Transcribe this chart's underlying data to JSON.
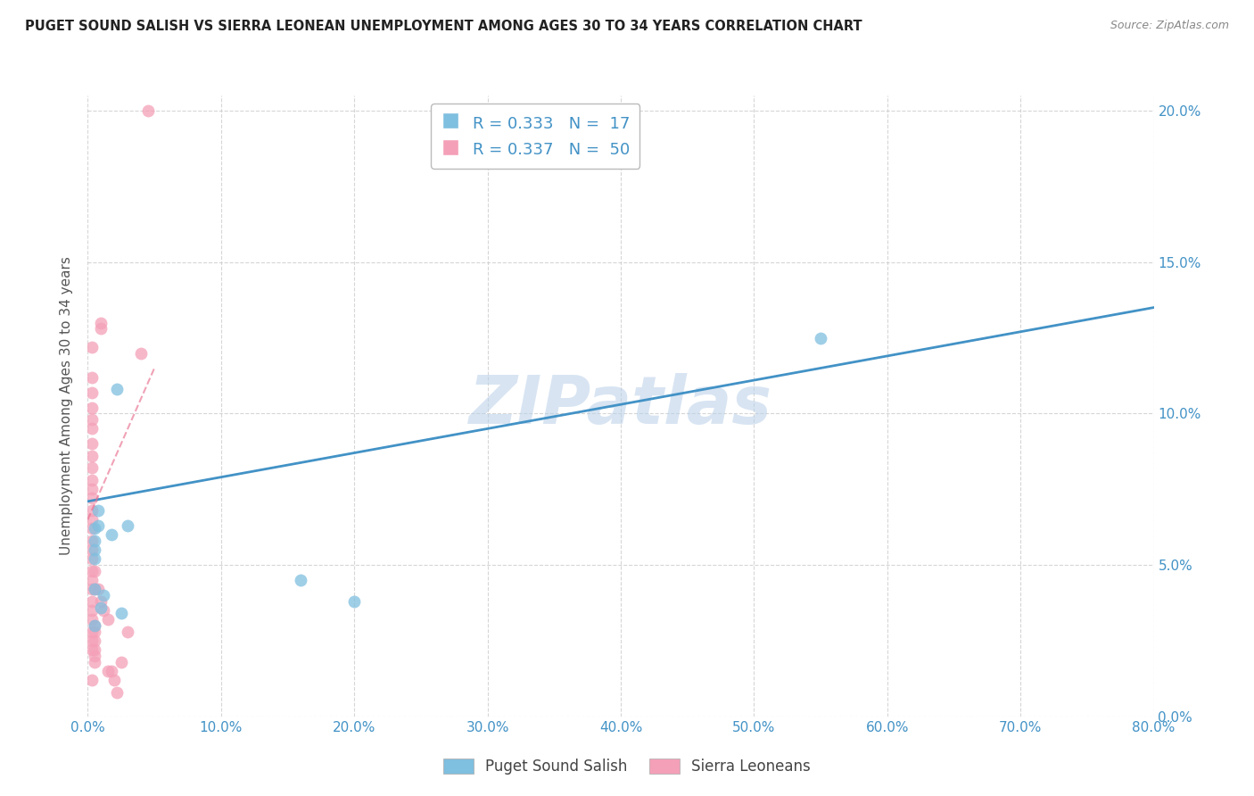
{
  "title": "PUGET SOUND SALISH VS SIERRA LEONEAN UNEMPLOYMENT AMONG AGES 30 TO 34 YEARS CORRELATION CHART",
  "source": "Source: ZipAtlas.com",
  "ylabel": "Unemployment Among Ages 30 to 34 years",
  "xlim": [
    0,
    0.8
  ],
  "ylim": [
    0,
    0.205
  ],
  "xticks": [
    0.0,
    0.1,
    0.2,
    0.3,
    0.4,
    0.5,
    0.6,
    0.7,
    0.8
  ],
  "yticks": [
    0.0,
    0.05,
    0.1,
    0.15,
    0.2
  ],
  "background_color": "#ffffff",
  "grid_color": "#cccccc",
  "watermark": "ZIPatlas",
  "blue_color": "#7fbfdf",
  "pink_color": "#f4a0b8",
  "blue_line_color": "#4292c6",
  "pink_line_color": "#e87090",
  "legend_R1": "R = 0.333",
  "legend_N1": "N =  17",
  "legend_R2": "R = 0.337",
  "legend_N2": "N =  50",
  "label1": "Puget Sound Salish",
  "label2": "Sierra Leoneans",
  "blue_scatter_x": [
    0.005,
    0.005,
    0.005,
    0.005,
    0.005,
    0.005,
    0.008,
    0.008,
    0.01,
    0.012,
    0.018,
    0.022,
    0.025,
    0.16,
    0.2,
    0.03,
    0.55
  ],
  "blue_scatter_y": [
    0.062,
    0.058,
    0.055,
    0.052,
    0.042,
    0.03,
    0.068,
    0.063,
    0.036,
    0.04,
    0.06,
    0.108,
    0.034,
    0.045,
    0.038,
    0.063,
    0.125
  ],
  "pink_scatter_x": [
    0.003,
    0.003,
    0.003,
    0.003,
    0.003,
    0.003,
    0.003,
    0.003,
    0.003,
    0.003,
    0.003,
    0.003,
    0.003,
    0.003,
    0.003,
    0.003,
    0.003,
    0.003,
    0.003,
    0.003,
    0.003,
    0.003,
    0.003,
    0.003,
    0.003,
    0.003,
    0.003,
    0.003,
    0.005,
    0.005,
    0.005,
    0.005,
    0.005,
    0.005,
    0.005,
    0.005,
    0.008,
    0.01,
    0.01,
    0.01,
    0.012,
    0.015,
    0.015,
    0.018,
    0.02,
    0.022,
    0.025,
    0.03,
    0.04,
    0.045
  ],
  "pink_scatter_y": [
    0.122,
    0.112,
    0.107,
    0.102,
    0.098,
    0.095,
    0.09,
    0.086,
    0.082,
    0.078,
    0.075,
    0.072,
    0.068,
    0.065,
    0.062,
    0.058,
    0.055,
    0.052,
    0.048,
    0.045,
    0.042,
    0.038,
    0.035,
    0.032,
    0.028,
    0.025,
    0.022,
    0.012,
    0.048,
    0.042,
    0.03,
    0.028,
    0.025,
    0.022,
    0.02,
    0.018,
    0.042,
    0.13,
    0.128,
    0.038,
    0.035,
    0.032,
    0.015,
    0.015,
    0.012,
    0.008,
    0.018,
    0.028,
    0.12,
    0.2
  ],
  "blue_line_x": [
    0.0,
    0.8
  ],
  "blue_line_y": [
    0.071,
    0.135
  ],
  "pink_line_x": [
    0.0,
    0.05
  ],
  "pink_line_y": [
    0.065,
    0.115
  ]
}
